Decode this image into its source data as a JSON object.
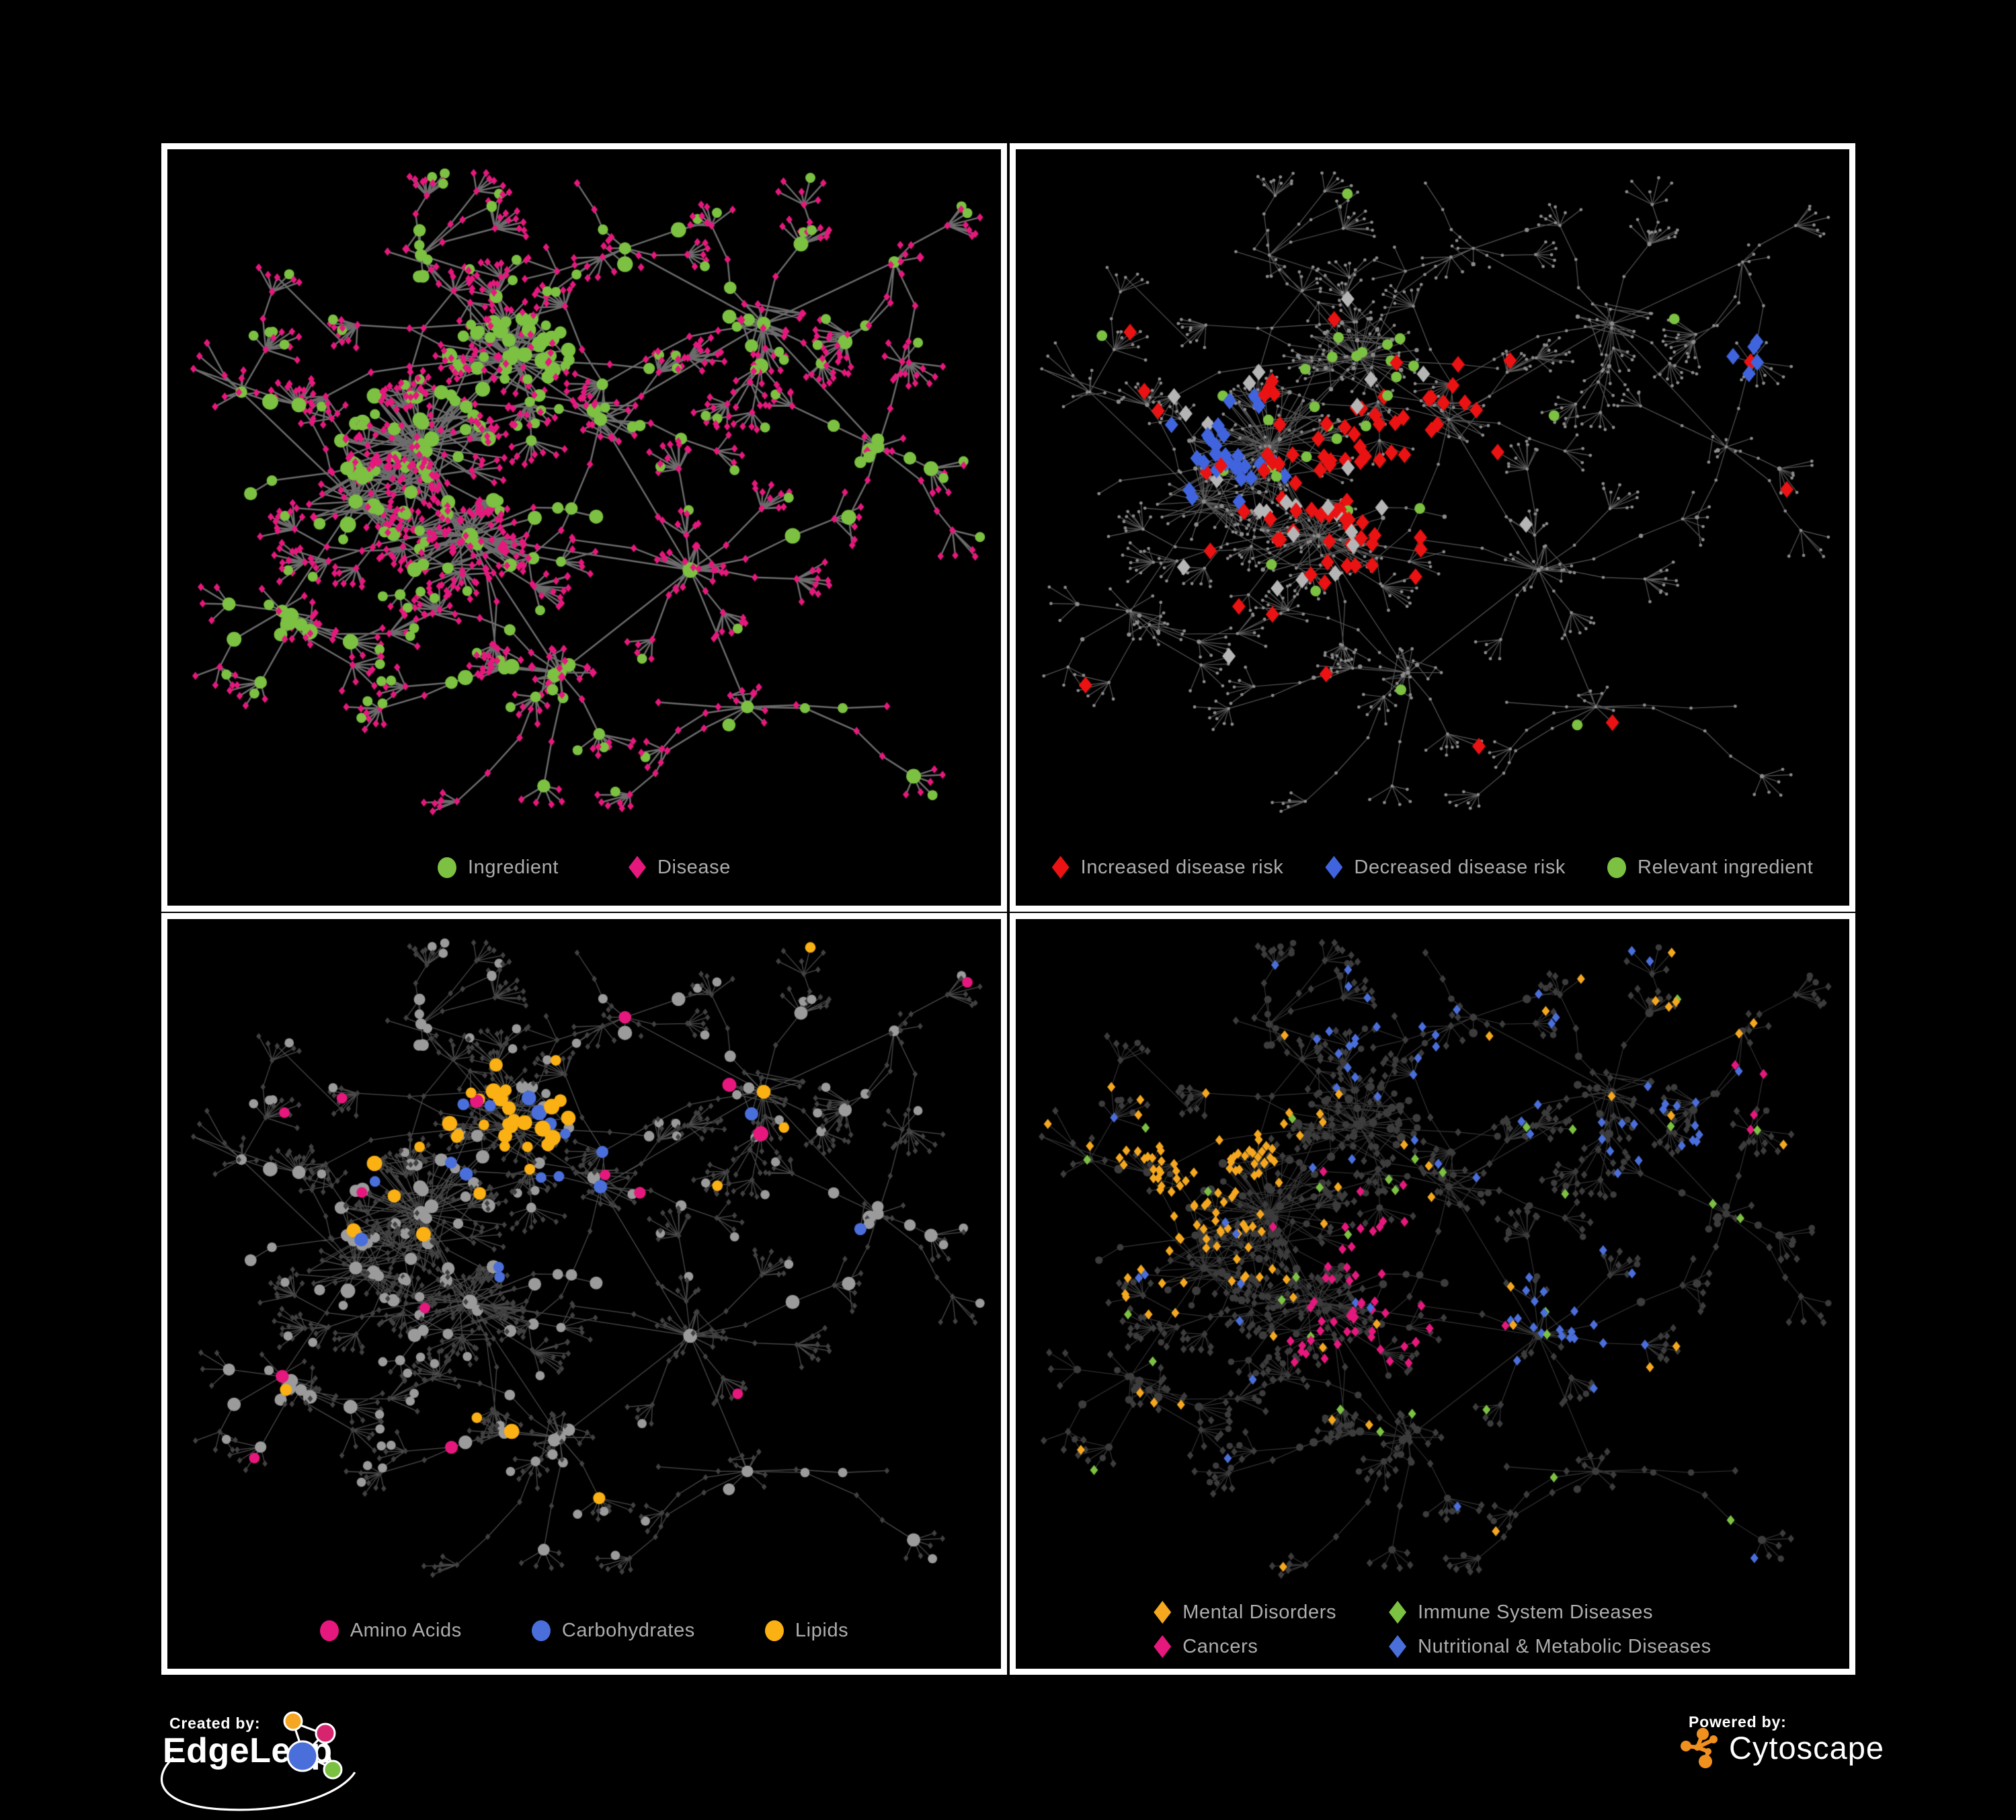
{
  "figure": {
    "background": "#000000",
    "panel_border_color": "#ffffff",
    "legend_text_color": "#adadad"
  },
  "panels": [
    {
      "name": "ingredient-disease-network",
      "legend": [
        {
          "label": "Ingredient",
          "shape": "circle",
          "color": "#7cc142"
        },
        {
          "label": "Disease",
          "shape": "diamond",
          "color": "#e6187d"
        }
      ],
      "colors": {
        "edge": "#787878"
      }
    },
    {
      "name": "disease-risk-network",
      "legend": [
        {
          "label": "Increased disease risk",
          "shape": "diamond",
          "color": "#ea1212"
        },
        {
          "label": "Decreased disease risk",
          "shape": "diamond",
          "color": "#4064de"
        },
        {
          "label": "Relevant ingredient",
          "shape": "circle",
          "color": "#7cc142"
        }
      ],
      "colors": {
        "edge": "#696969",
        "base_node": "#8c8c8c",
        "neutral_diamond": "#b5b5b5"
      }
    },
    {
      "name": "nutrient-class-network",
      "legend": [
        {
          "label": "Amino Acids",
          "shape": "circle",
          "color": "#e6187d"
        },
        {
          "label": "Carbohydrates",
          "shape": "circle",
          "color": "#4a6fdb"
        },
        {
          "label": "Lipids",
          "shape": "circle",
          "color": "#fbb013"
        }
      ],
      "colors": {
        "edge": "#989898",
        "circle": "#9b9b9b",
        "diamond": "#414141"
      }
    },
    {
      "name": "disease-class-network",
      "legend": [
        {
          "label": "Mental Disorders",
          "shape": "diamond",
          "color": "#f5a81f"
        },
        {
          "label": "Immune System Diseases",
          "shape": "diamond",
          "color": "#7cc142"
        },
        {
          "label": "Cancers",
          "shape": "diamond",
          "color": "#e6187d"
        },
        {
          "label": "Nutritional & Metabolic Diseases",
          "shape": "diamond",
          "color": "#4a6fdb"
        }
      ],
      "colors": {
        "edge": "#7d7d7d",
        "base_node": "#3c3c3c"
      }
    }
  ],
  "footer": {
    "created_by_label": "Created by:",
    "created_by_name": "EdgeLeap",
    "powered_by_label": "Powered by:",
    "powered_by_name": "Cytoscape",
    "edgeleap_colors": {
      "orange": "#f5a623",
      "pink": "#d6246e",
      "blue": "#4a6fdb",
      "green": "#7ac142",
      "line": "#ffffff"
    },
    "cytoscape_color": "#f0901e"
  },
  "chart_data": [
    {
      "type": "network",
      "panel": "top-left",
      "description": "Ingredient-disease association network; green circles are ingredients, pink diamonds are diseases, connected by gray edges on black.",
      "legend_entries": [
        "Ingredient",
        "Disease"
      ],
      "node_shapes": {
        "Ingredient": "circle",
        "Disease": "diamond"
      },
      "node_colors": {
        "Ingredient": "#7cc142",
        "Disease": "#e6187d"
      },
      "layout": "organic force-directed hairball with hub clusters and leaf fans"
    },
    {
      "type": "network",
      "panel": "top-right",
      "description": "Same network topology drawn with tiny gray nodes; highlighted diamonds mark disease-risk effects and green circles mark relevant ingredients, mostly in the central clusters.",
      "legend_entries": [
        "Increased disease risk",
        "Decreased disease risk",
        "Relevant ingredient"
      ],
      "node_colors": {
        "Increased disease risk": "#ea1212",
        "Decreased disease risk": "#4064de",
        "Relevant ingredient": "#7cc142",
        "neutral_highlight": "#b5b5b5",
        "unhighlighted": "#8c8c8c"
      }
    },
    {
      "type": "network",
      "panel": "bottom-left",
      "description": "Same network with ingredient circles colored by nutrient class (amino acids pink, carbohydrates blue, lipids orange); other ingredients gray, diseases dark gray diamonds.",
      "legend_entries": [
        "Amino Acids",
        "Carbohydrates",
        "Lipids"
      ],
      "node_colors": {
        "Amino Acids": "#e6187d",
        "Carbohydrates": "#4a6fdb",
        "Lipids": "#fbb013",
        "other_ingredient": "#9b9b9b",
        "disease": "#414141"
      }
    },
    {
      "type": "network",
      "panel": "bottom-right",
      "description": "Same network with disease diamonds colored by disease class: mental disorders (orange cluster left), cancers (magenta, center and top right), immune system diseases (green, sparse), nutritional & metabolic diseases (blue, right side); remaining nodes dark gray.",
      "legend_entries": [
        "Mental Disorders",
        "Immune System Diseases",
        "Cancers",
        "Nutritional & Metabolic Diseases"
      ],
      "node_colors": {
        "Mental Disorders": "#f5a81f",
        "Immune System Diseases": "#7cc142",
        "Cancers": "#e6187d",
        "Nutritional & Metabolic Diseases": "#4a6fdb",
        "unhighlighted": "#3c3c3c"
      }
    }
  ]
}
